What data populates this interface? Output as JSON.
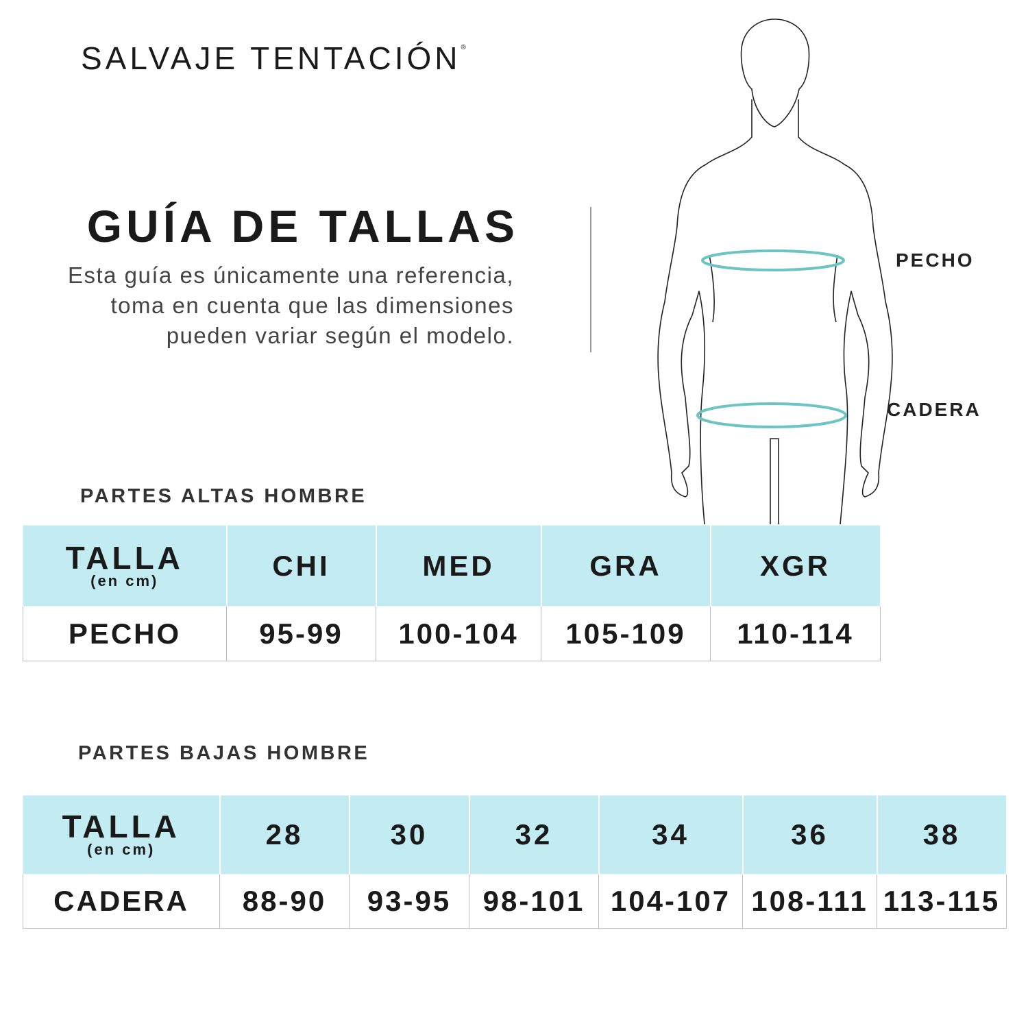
{
  "brand": {
    "name": "SALVAJE TENTACIÓN",
    "mark": "®"
  },
  "title": "GUÍA DE TALLAS",
  "description": "Esta guía es únicamente una referencia, toma en cuenta que las dimensiones pueden variar según el modelo.",
  "figure": {
    "labels": {
      "chest": "PECHO",
      "hip": "CADERA"
    },
    "ring_color": "#6cc4c4"
  },
  "colors": {
    "header_bg": "#c3ecf2"
  },
  "upper": {
    "section_title": "PARTES ALTAS HOMBRE",
    "size_label": "TALLA",
    "unit_label": "(en cm)",
    "sizes": [
      "CHI",
      "MED",
      "GRA",
      "XGR"
    ],
    "row_label": "PECHO",
    "values": [
      "95-99",
      "100-104",
      "105-109",
      "110-114"
    ]
  },
  "lower": {
    "section_title": "PARTES BAJAS HOMBRE",
    "size_label": "TALLA",
    "unit_label": "(en cm)",
    "sizes": [
      "28",
      "30",
      "32",
      "34",
      "36",
      "38"
    ],
    "row_label": "CADERA",
    "values": [
      "88-90",
      "93-95",
      "98-101",
      "104-107",
      "108-111",
      "113-115"
    ]
  }
}
